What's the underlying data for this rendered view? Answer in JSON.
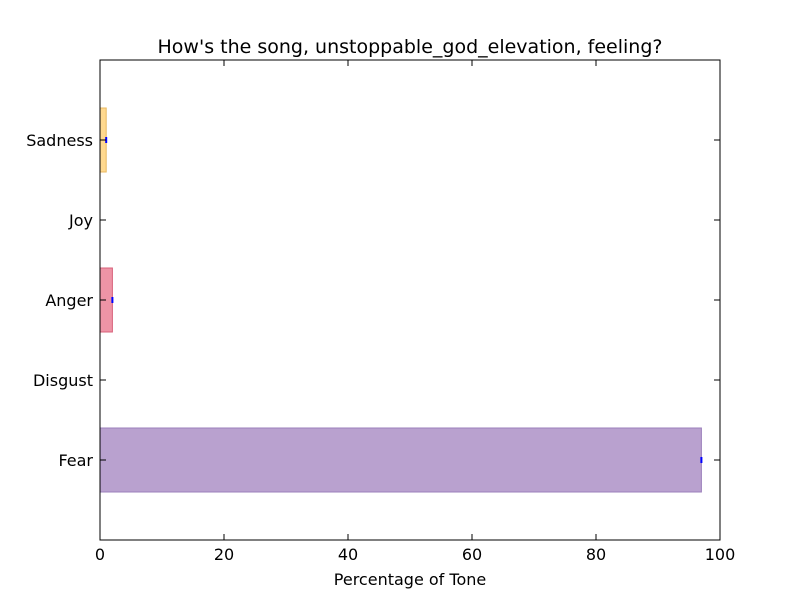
{
  "chart_data": {
    "type": "bar",
    "orientation": "horizontal",
    "title": "How's the song, unstoppable_god_elevation, feeling?",
    "xlabel": "Percentage of Tone",
    "ylabel": "",
    "xlim": [
      0,
      100
    ],
    "xticks": [
      0,
      20,
      40,
      60,
      80,
      100
    ],
    "grid": false,
    "categories": [
      "Sadness",
      "Joy",
      "Anger",
      "Disgust",
      "Fear"
    ],
    "values": [
      1,
      0,
      2,
      0,
      97
    ],
    "colors": [
      "#ffd98f",
      "#ffffff",
      "#ee94a6",
      "#ffffff",
      "#b9a1cf"
    ],
    "edge_colors": [
      "#e8b860",
      "#ffffff",
      "#d8607a",
      "#ffffff",
      "#9b7fbb"
    ],
    "marker_color": "#0000ff"
  }
}
